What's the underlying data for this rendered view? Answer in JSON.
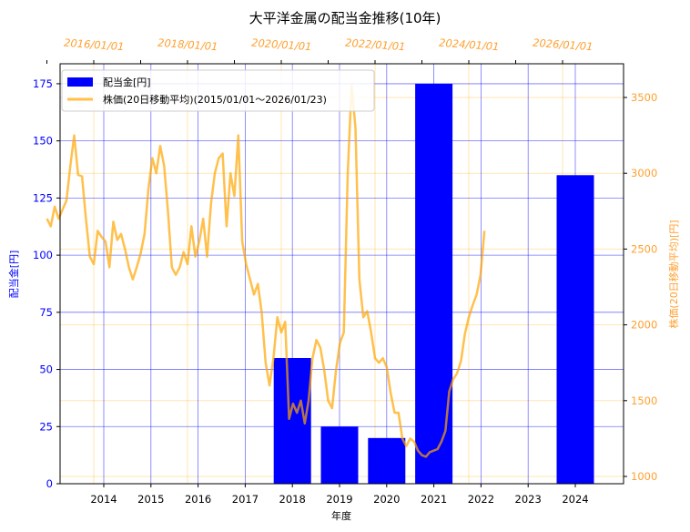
{
  "chart_data": {
    "type": "bar+line",
    "title": "大平洋金属の配当金推移(10年)",
    "xlabel": "年度",
    "ylabel_left": "配当金[円]",
    "ylabel_right": "株価(20日移動平均)[円]",
    "ylim_left": [
      0,
      183
    ],
    "ylim_right": [
      955,
      3720
    ],
    "x_ticks_bottom": [
      "2014",
      "2015",
      "2016",
      "2017",
      "2018",
      "2019",
      "2020",
      "2021",
      "2022",
      "2023",
      "2024"
    ],
    "x_ticks_top": [
      "2016/01/01",
      "2018/01/01",
      "2020/01/01",
      "2022/01/01",
      "2024/01/01",
      "2026/01/01"
    ],
    "y_ticks_left": [
      0,
      25,
      50,
      75,
      100,
      125,
      150,
      175
    ],
    "y_ticks_right": [
      1000,
      1500,
      2000,
      2500,
      3000,
      3500
    ],
    "grid": true,
    "legend_position": "upper left",
    "series": [
      {
        "name": "配当金[円]",
        "type": "bar",
        "color": "#0000ff",
        "categories": [
          "2014",
          "2015",
          "2016",
          "2017",
          "2018",
          "2019",
          "2020",
          "2021",
          "2022",
          "2023",
          "2024"
        ],
        "values": [
          0,
          0,
          0,
          0,
          55,
          25,
          20,
          175,
          0,
          0,
          135
        ]
      },
      {
        "name": "株価(20日移動平均)(2015/01/01～2026/01/23)",
        "type": "line",
        "color": "#ffa500",
        "axis": "right",
        "points": [
          [
            "2015-01",
            2700
          ],
          [
            "2015-02",
            2650
          ],
          [
            "2015-03",
            2780
          ],
          [
            "2015-04",
            2700
          ],
          [
            "2015-05",
            2760
          ],
          [
            "2015-06",
            2820
          ],
          [
            "2015-07",
            3050
          ],
          [
            "2015-08",
            3250
          ],
          [
            "2015-09",
            2990
          ],
          [
            "2015-10",
            2980
          ],
          [
            "2015-11",
            2700
          ],
          [
            "2015-12",
            2450
          ],
          [
            "2016-01",
            2400
          ],
          [
            "2016-02",
            2620
          ],
          [
            "2016-03",
            2580
          ],
          [
            "2016-04",
            2550
          ],
          [
            "2016-05",
            2380
          ],
          [
            "2016-06",
            2680
          ],
          [
            "2016-07",
            2560
          ],
          [
            "2016-08",
            2600
          ],
          [
            "2016-09",
            2500
          ],
          [
            "2016-10",
            2380
          ],
          [
            "2016-11",
            2300
          ],
          [
            "2016-12",
            2380
          ],
          [
            "2017-01",
            2470
          ],
          [
            "2017-02",
            2600
          ],
          [
            "2017-03",
            2900
          ],
          [
            "2017-04",
            3100
          ],
          [
            "2017-05",
            3000
          ],
          [
            "2017-06",
            3180
          ],
          [
            "2017-07",
            3050
          ],
          [
            "2017-08",
            2750
          ],
          [
            "2017-09",
            2380
          ],
          [
            "2017-10",
            2330
          ],
          [
            "2017-11",
            2380
          ],
          [
            "2017-12",
            2480
          ],
          [
            "2018-01",
            2400
          ],
          [
            "2018-02",
            2650
          ],
          [
            "2018-03",
            2450
          ],
          [
            "2018-04",
            2550
          ],
          [
            "2018-05",
            2700
          ],
          [
            "2018-06",
            2450
          ],
          [
            "2018-07",
            2800
          ],
          [
            "2018-08",
            3000
          ],
          [
            "2018-09",
            3100
          ],
          [
            "2018-10",
            3130
          ],
          [
            "2018-11",
            2650
          ],
          [
            "2018-12",
            3000
          ],
          [
            "2019-01",
            2850
          ],
          [
            "2019-02",
            3250
          ],
          [
            "2019-03",
            2550
          ],
          [
            "2019-04",
            2400
          ],
          [
            "2019-05",
            2300
          ],
          [
            "2019-06",
            2200
          ],
          [
            "2019-07",
            2270
          ],
          [
            "2019-08",
            2080
          ],
          [
            "2019-09",
            1750
          ],
          [
            "2019-10",
            1600
          ],
          [
            "2019-11",
            1780
          ],
          [
            "2019-12",
            2050
          ],
          [
            "2020-01",
            1950
          ],
          [
            "2020-02",
            2020
          ],
          [
            "2020-03",
            1380
          ],
          [
            "2020-04",
            1480
          ],
          [
            "2020-05",
            1420
          ],
          [
            "2020-06",
            1500
          ],
          [
            "2020-07",
            1350
          ],
          [
            "2020-08",
            1500
          ],
          [
            "2020-09",
            1780
          ],
          [
            "2020-10",
            1900
          ],
          [
            "2020-11",
            1850
          ],
          [
            "2020-12",
            1700
          ],
          [
            "2021-01",
            1500
          ],
          [
            "2021-02",
            1450
          ],
          [
            "2021-03",
            1700
          ],
          [
            "2021-04",
            1880
          ],
          [
            "2021-05",
            1950
          ],
          [
            "2021-06",
            3000
          ],
          [
            "2021-07",
            3580
          ],
          [
            "2021-08",
            3300
          ],
          [
            "2021-09",
            2300
          ],
          [
            "2021-10",
            2050
          ],
          [
            "2021-11",
            2090
          ],
          [
            "2021-12",
            1950
          ],
          [
            "2022-01",
            1780
          ],
          [
            "2022-02",
            1750
          ],
          [
            "2022-03",
            1780
          ],
          [
            "2022-04",
            1720
          ],
          [
            "2022-05",
            1550
          ],
          [
            "2022-06",
            1420
          ],
          [
            "2022-07",
            1420
          ],
          [
            "2022-08",
            1250
          ],
          [
            "2022-09",
            1200
          ],
          [
            "2022-10",
            1250
          ],
          [
            "2022-11",
            1230
          ],
          [
            "2022-12",
            1170
          ],
          [
            "2023-01",
            1140
          ],
          [
            "2023-02",
            1130
          ],
          [
            "2023-03",
            1160
          ],
          [
            "2023-04",
            1170
          ],
          [
            "2023-05",
            1180
          ],
          [
            "2023-06",
            1230
          ],
          [
            "2023-07",
            1300
          ],
          [
            "2023-08",
            1560
          ],
          [
            "2023-09",
            1640
          ],
          [
            "2023-10",
            1680
          ],
          [
            "2023-11",
            1760
          ],
          [
            "2023-12",
            1940
          ],
          [
            "2024-01",
            2050
          ],
          [
            "2024-02",
            2130
          ],
          [
            "2024-03",
            2200
          ],
          [
            "2024-04",
            2330
          ],
          [
            "2024-05",
            2620
          ]
        ]
      }
    ]
  }
}
